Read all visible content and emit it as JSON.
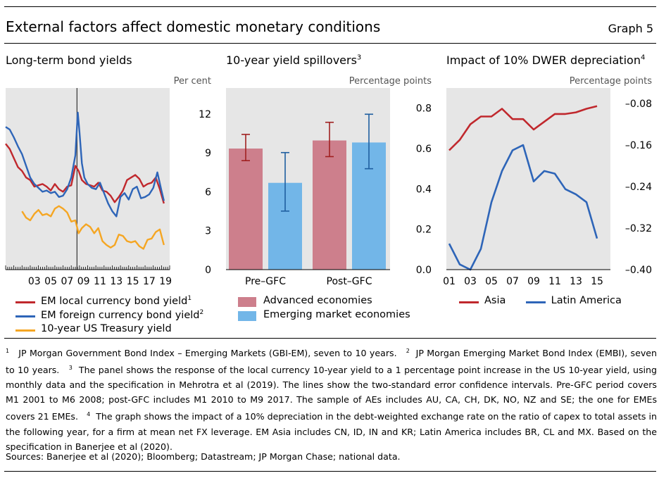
{
  "header": {
    "title": "External factors affect domestic monetary conditions",
    "graph_number": "Graph 5"
  },
  "panels": [
    {
      "title": "Long-term bond yields",
      "sup": "",
      "unit": "Per cent"
    },
    {
      "title": "10-year yield spillovers",
      "sup": "3",
      "unit": "Percentage points"
    },
    {
      "title": "Impact of 10% DWER depreciation",
      "sup": "4",
      "unit": "Percentage points"
    }
  ],
  "legends": {
    "panel1": [
      {
        "label": "EM local currency bond yield",
        "sup": "1",
        "color": "#c0282d"
      },
      {
        "label": "EM foreign currency bond yield",
        "sup": "2",
        "color": "#2e65b8"
      },
      {
        "label": "10-year US Treasury yield",
        "sup": "",
        "color": "#f5a623"
      }
    ],
    "panel2": [
      {
        "label": "Advanced economies",
        "color": "#cd7f8c"
      },
      {
        "label": "Emerging market economies",
        "color": "#72b6e8"
      }
    ],
    "panel3": [
      {
        "label": "Asia",
        "color": "#c0282d"
      },
      {
        "label": "Latin America",
        "color": "#2e65b8"
      }
    ]
  },
  "chart_data": [
    {
      "type": "line",
      "title": "Long-term bond yields",
      "ylabel": "Per cent",
      "y_axis_side": "right",
      "ylim": [
        0,
        14
      ],
      "yticks": [
        0,
        3,
        6,
        9,
        12
      ],
      "xlim": [
        2000.0,
        2020.0
      ],
      "xtick_labels": [
        "03",
        "05",
        "07",
        "09",
        "11",
        "13",
        "15",
        "17",
        "19"
      ],
      "xtick_positions": [
        2003,
        2005,
        2007,
        2009,
        2011,
        2013,
        2015,
        2017,
        2019
      ],
      "vertical_line_at": 2008.7,
      "background": "#e6e6e6",
      "series": [
        {
          "name": "EM local currency bond yield",
          "color": "#c0282d",
          "x": [
            2000.0,
            2000.5,
            2001.0,
            2001.5,
            2002.0,
            2002.5,
            2003.0,
            2003.5,
            2004.0,
            2004.5,
            2005.0,
            2005.5,
            2006.0,
            2006.5,
            2007.0,
            2007.5,
            2008.0,
            2008.5,
            2008.9,
            2009.3,
            2009.8,
            2010.3,
            2010.8,
            2011.3,
            2011.8,
            2012.3,
            2012.8,
            2013.3,
            2013.8,
            2014.3,
            2014.8,
            2015.3,
            2015.8,
            2016.3,
            2016.8,
            2017.3,
            2017.8,
            2018.3,
            2018.8,
            2019.3
          ],
          "y": [
            9.7,
            9.3,
            8.6,
            7.9,
            7.6,
            7.1,
            6.9,
            6.4,
            6.5,
            6.6,
            6.4,
            6.1,
            6.6,
            6.2,
            6.0,
            6.4,
            6.5,
            8.0,
            7.6,
            6.9,
            6.6,
            6.5,
            6.4,
            6.7,
            6.1,
            6.0,
            5.7,
            5.2,
            5.6,
            6.1,
            6.9,
            7.1,
            7.3,
            7.0,
            6.4,
            6.6,
            6.7,
            7.1,
            6.2,
            5.1
          ]
        },
        {
          "name": "EM foreign currency bond yield",
          "color": "#2e65b8",
          "x": [
            2000.0,
            2000.5,
            2001.0,
            2001.5,
            2002.0,
            2002.5,
            2003.0,
            2003.5,
            2004.0,
            2004.5,
            2005.0,
            2005.5,
            2006.0,
            2006.5,
            2007.0,
            2007.5,
            2008.0,
            2008.5,
            2008.8,
            2009.0,
            2009.3,
            2009.6,
            2010.0,
            2010.5,
            2011.0,
            2011.5,
            2012.0,
            2012.5,
            2013.0,
            2013.5,
            2014.0,
            2014.5,
            2015.0,
            2015.5,
            2016.0,
            2016.5,
            2017.0,
            2017.5,
            2018.0,
            2018.5,
            2019.0,
            2019.3
          ],
          "y": [
            11.0,
            10.8,
            10.2,
            9.5,
            8.9,
            8.0,
            7.1,
            6.6,
            6.3,
            6.0,
            6.1,
            5.9,
            6.0,
            5.6,
            5.7,
            6.2,
            7.1,
            8.8,
            12.1,
            10.6,
            8.2,
            7.1,
            6.6,
            6.3,
            6.2,
            6.7,
            5.9,
            5.1,
            4.5,
            4.1,
            5.6,
            5.9,
            5.4,
            6.2,
            6.4,
            5.5,
            5.6,
            5.8,
            6.3,
            7.5,
            6.1,
            5.3
          ]
        },
        {
          "name": "10-year US Treasury yield",
          "color": "#f5a623",
          "x": [
            2002.0,
            2002.5,
            2003.0,
            2003.5,
            2004.0,
            2004.5,
            2005.0,
            2005.5,
            2006.0,
            2006.5,
            2007.0,
            2007.5,
            2008.0,
            2008.5,
            2008.9,
            2009.3,
            2009.8,
            2010.3,
            2010.8,
            2011.3,
            2011.8,
            2012.3,
            2012.8,
            2013.3,
            2013.8,
            2014.3,
            2014.8,
            2015.3,
            2015.8,
            2016.3,
            2016.8,
            2017.3,
            2017.8,
            2018.3,
            2018.8,
            2019.3
          ],
          "y": [
            4.5,
            4.0,
            3.8,
            4.3,
            4.6,
            4.2,
            4.3,
            4.1,
            4.7,
            4.9,
            4.7,
            4.4,
            3.7,
            3.8,
            2.8,
            3.2,
            3.5,
            3.3,
            2.8,
            3.2,
            2.2,
            1.9,
            1.7,
            1.9,
            2.7,
            2.6,
            2.2,
            2.1,
            2.2,
            1.8,
            1.6,
            2.3,
            2.4,
            2.9,
            3.1,
            1.9
          ]
        }
      ]
    },
    {
      "type": "bar",
      "title": "10-year yield spillovers",
      "ylabel": "Percentage points",
      "y_axis_side": "right",
      "ylim": [
        0.0,
        0.9
      ],
      "yticks": [
        0.0,
        0.2,
        0.4,
        0.6,
        0.8
      ],
      "ytick_labels": [
        "0.0",
        "0.2",
        "0.4",
        "0.6",
        "0.8"
      ],
      "categories": [
        "Pre–GFC",
        "Post–GFC"
      ],
      "background": "#e6e6e6",
      "error_bar_color": "#a02020",
      "error_bar_color_eme": "#1f5fa0",
      "series": [
        {
          "name": "Advanced economies",
          "color": "#cd7f8c",
          "values": [
            0.6,
            0.64
          ],
          "err_low": [
            0.54,
            0.56
          ],
          "err_high": [
            0.67,
            0.73
          ]
        },
        {
          "name": "Emerging market economies",
          "color": "#72b6e8",
          "values": [
            0.43,
            0.63
          ],
          "err_low": [
            0.29,
            0.5
          ],
          "err_high": [
            0.58,
            0.77
          ]
        }
      ]
    },
    {
      "type": "line",
      "title": "Impact of 10% DWER depreciation",
      "ylabel": "Percentage points",
      "y_axis_side": "right",
      "ylim": [
        -0.4,
        -0.05
      ],
      "yticks": [
        -0.4,
        -0.32,
        -0.24,
        -0.16,
        -0.08
      ],
      "ytick_labels": [
        "–0.40",
        "–0.32",
        "–0.24",
        "–0.16",
        "–0.08"
      ],
      "xlim": [
        2001,
        2016
      ],
      "xtick_labels": [
        "01",
        "03",
        "05",
        "07",
        "09",
        "11",
        "13",
        "15"
      ],
      "xtick_positions": [
        2001,
        2003,
        2005,
        2007,
        2009,
        2011,
        2013,
        2015
      ],
      "background": "#e6e6e6",
      "series": [
        {
          "name": "Asia",
          "color": "#c0282d",
          "x": [
            2001,
            2002,
            2003,
            2004,
            2005,
            2006,
            2007,
            2008,
            2009,
            2010,
            2011,
            2012,
            2013,
            2014,
            2015
          ],
          "y": [
            -0.17,
            -0.15,
            -0.12,
            -0.105,
            -0.105,
            -0.09,
            -0.11,
            -0.11,
            -0.13,
            -0.115,
            -0.1,
            -0.1,
            -0.097,
            -0.09,
            -0.085
          ]
        },
        {
          "name": "Latin America",
          "color": "#2e65b8",
          "x": [
            2001,
            2002,
            2003,
            2004,
            2005,
            2006,
            2007,
            2008,
            2009,
            2010,
            2011,
            2012,
            2013,
            2014,
            2015
          ],
          "y": [
            -0.35,
            -0.39,
            -0.4,
            -0.36,
            -0.27,
            -0.21,
            -0.17,
            -0.16,
            -0.23,
            -0.21,
            -0.215,
            -0.245,
            -0.255,
            -0.27,
            -0.34
          ]
        }
      ]
    }
  ],
  "notes": {
    "n1_mark": "1",
    "n1": "JP Morgan Government Bond Index – Emerging Markets (GBI-EM), seven to 10 years.",
    "n2_mark": "2",
    "n2": "JP Morgan Emerging Market Bond Index (EMBI), seven to 10 years.",
    "n3_mark": "3",
    "n3": "The panel shows the response of the local currency 10-year yield to a 1 percentage point increase in the US 10-year yield, using monthly data and the specification in Mehrotra et al (2019). The lines show the two-standard error confidence intervals. Pre-GFC period covers M1 2001 to M6 2008; post-GFC includes M1 2010 to M9 2017. The sample of AEs includes AU, CA, CH, DK, NO, NZ and SE; the one for EMEs covers 21 EMEs.",
    "n4_mark": "4",
    "n4": "The graph shows the impact of a 10% depreciation in the debt-weighted exchange rate on the ratio of capex to total assets in the following year, for a firm at mean net FX leverage. EM Asia includes CN, ID, IN and KR; Latin America includes BR, CL and MX. Based on the specification in Banerjee et al (2020)."
  },
  "sources": "Sources: Banerjee et al (2020); Bloomberg; Datastream; JP Morgan Chase; national data."
}
